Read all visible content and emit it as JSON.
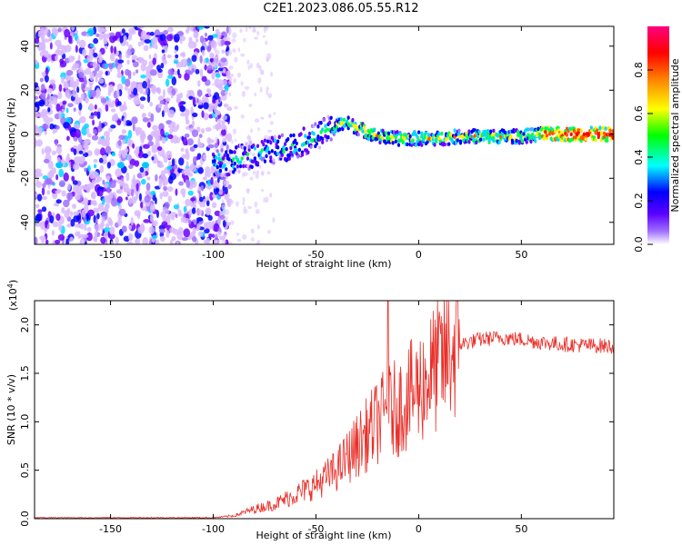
{
  "title": "C2E1.2023.086.05.55.R12",
  "chart_data": [
    {
      "type": "heatmap",
      "xlabel": "Height of straight line (km)",
      "ylabel": "Frequency (Hz)",
      "xlim": [
        -187,
        95
      ],
      "ylim": [
        -50,
        49
      ],
      "xticks": [
        -150,
        -100,
        -50,
        0,
        50
      ],
      "yticks": [
        -40,
        -20,
        0,
        20,
        40
      ],
      "colorbar": {
        "label": "Normalized spectral amplitude",
        "range": [
          0,
          1
        ],
        "ticks": [
          "0.0",
          "0.2",
          "0.4",
          "0.6",
          "0.8"
        ],
        "tick_values": [
          0,
          0.2,
          0.4,
          0.6,
          0.8
        ],
        "colormap": [
          "#ffffff",
          "#7a00ff",
          "#0000ff",
          "#00ffff",
          "#00ff00",
          "#ffff00",
          "#ff8800",
          "#ff0000",
          "#ff007f"
        ]
      },
      "ridge": {
        "description": "dominant frequency track",
        "x": [
          -100,
          -90,
          -80,
          -70,
          -60,
          -50,
          -40,
          -35,
          -30,
          -25,
          -20,
          -10,
          0,
          10,
          20,
          30,
          40,
          50,
          60,
          70,
          80,
          95
        ],
        "y": [
          -14,
          -12,
          -9,
          -7,
          -5,
          -1,
          4,
          5,
          3,
          1,
          -1,
          -2,
          -2,
          -2,
          -1,
          -1,
          -1,
          -1,
          0,
          0,
          0,
          0
        ]
      },
      "noise_region": {
        "x": [
          -187,
          -100
        ],
        "y": [
          -50,
          49
        ]
      }
    },
    {
      "type": "line",
      "xlabel": "Height of straight line (km)",
      "ylabel": "SNR (10 * v/v)",
      "yscale_label": "(x10",
      "yscale_exp": "4",
      "yscale_close": ")",
      "xlim": [
        -187,
        95
      ],
      "ylim": [
        0,
        2.25
      ],
      "xticks": [
        -150,
        -100,
        -50,
        0,
        50
      ],
      "yticks": [
        "0.0",
        "0.5",
        "1.0",
        "1.5",
        "2.0"
      ],
      "ytick_values": [
        0,
        0.5,
        1.0,
        1.5,
        2.0
      ],
      "color": "#e8302a",
      "envelope": {
        "x": [
          -187,
          -100,
          -90,
          -80,
          -70,
          -60,
          -50,
          -40,
          -30,
          -20,
          -15,
          -10,
          0,
          10,
          20,
          30,
          40,
          50,
          60,
          70,
          80,
          95
        ],
        "y": [
          0.01,
          0.01,
          0.03,
          0.1,
          0.15,
          0.25,
          0.35,
          0.5,
          0.75,
          1.0,
          1.1,
          1.15,
          1.35,
          1.6,
          1.8,
          1.85,
          1.87,
          1.85,
          1.82,
          1.8,
          1.79,
          1.78
        ]
      },
      "spike": {
        "x": -15,
        "y": 2.25
      }
    }
  ]
}
